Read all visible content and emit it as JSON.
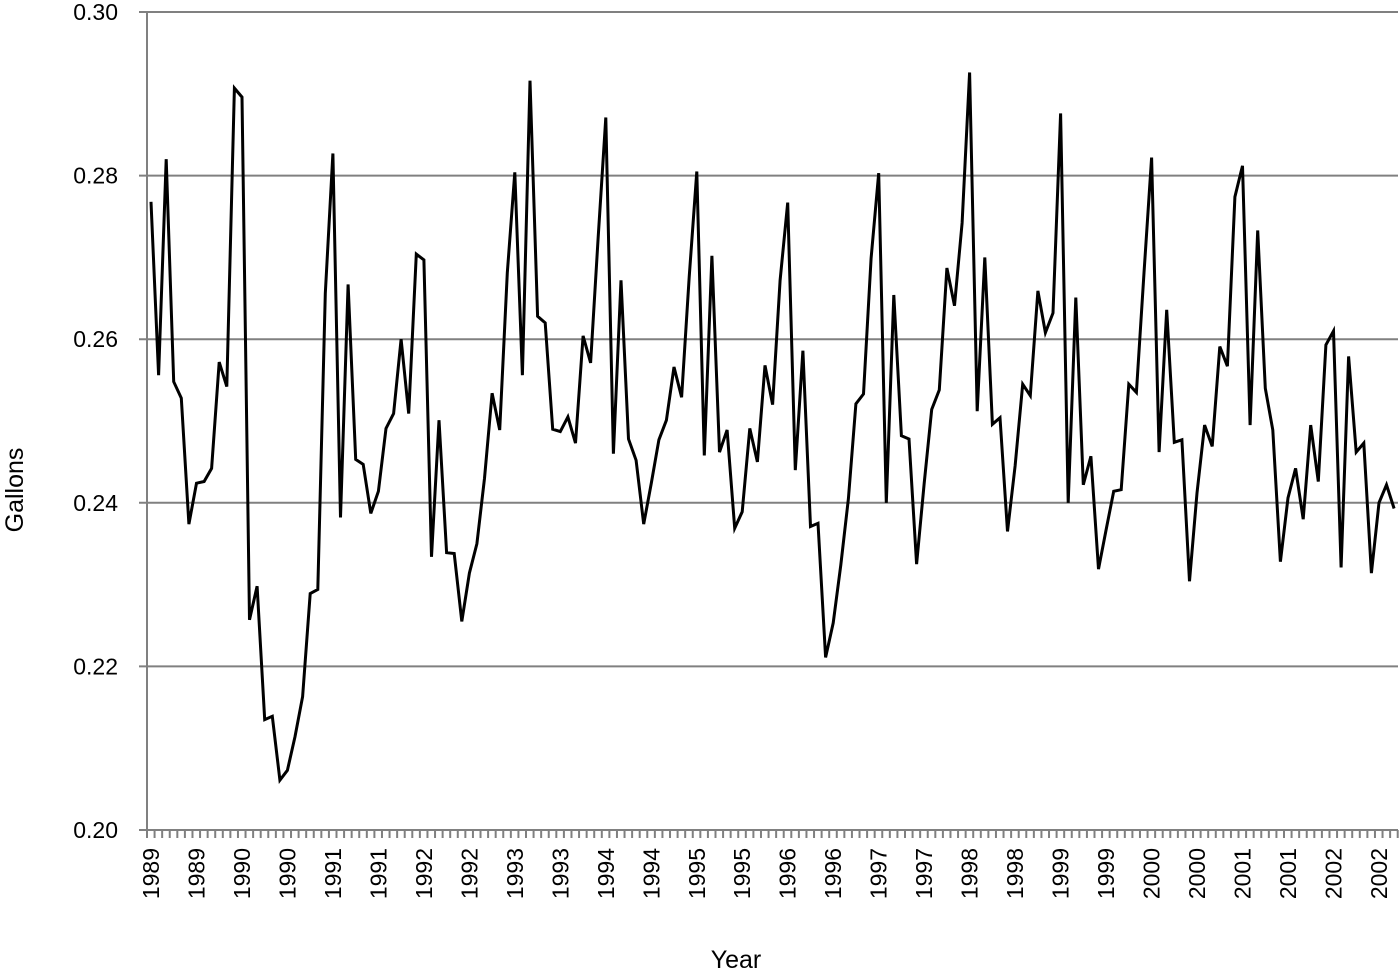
{
  "chart_data": {
    "type": "line",
    "title": "",
    "xlabel": "Year",
    "ylabel": "Gallons",
    "ylim": [
      0.2,
      0.3
    ],
    "yticks": [
      "0.20",
      "0.22",
      "0.24",
      "0.26",
      "0.28",
      "0.30"
    ],
    "grid": true,
    "legend": null,
    "x_frequency": "monthly",
    "x_start": "1989-01",
    "x_tick_labels": [
      "1989",
      "1989",
      "1990",
      "1990",
      "1991",
      "1991",
      "1992",
      "1992",
      "1993",
      "1993",
      "1994",
      "1994",
      "1995",
      "1995",
      "1996",
      "1996",
      "1997",
      "1997",
      "1998",
      "1998",
      "1999",
      "1999",
      "2000",
      "2000",
      "2001",
      "2001",
      "2002",
      "2002"
    ],
    "x_tick_label_interval_months": 6,
    "series": [
      {
        "name": "Gallons",
        "color": "#000000",
        "values": [
          0.2768,
          0.2556,
          0.282,
          0.2548,
          0.2528,
          0.2374,
          0.2424,
          0.2426,
          0.2442,
          0.2572,
          0.2542,
          0.2907,
          0.2896,
          0.2257,
          0.2298,
          0.2135,
          0.2139,
          0.2061,
          0.2073,
          0.2114,
          0.2163,
          0.2289,
          0.2294,
          0.2656,
          0.2827,
          0.2382,
          0.2667,
          0.2453,
          0.2447,
          0.2387,
          0.2414,
          0.2491,
          0.2509,
          0.26,
          0.2509,
          0.2704,
          0.2697,
          0.2334,
          0.2501,
          0.2339,
          0.2338,
          0.2255,
          0.2314,
          0.235,
          0.243,
          0.2534,
          0.2489,
          0.2681,
          0.2804,
          0.2556,
          0.2916,
          0.2628,
          0.262,
          0.249,
          0.2487,
          0.2505,
          0.2473,
          0.2604,
          0.2571,
          0.2725,
          0.2871,
          0.246,
          0.2672,
          0.2478,
          0.2452,
          0.2374,
          0.2424,
          0.2477,
          0.2501,
          0.2566,
          0.2529,
          0.2676,
          0.2805,
          0.2458,
          0.2702,
          0.2462,
          0.2489,
          0.2369,
          0.2389,
          0.2491,
          0.245,
          0.2568,
          0.252,
          0.2672,
          0.2767,
          0.244,
          0.2586,
          0.2371,
          0.2375,
          0.2211,
          0.2253,
          0.2324,
          0.2405,
          0.2521,
          0.2533,
          0.2699,
          0.2803,
          0.24,
          0.2654,
          0.2482,
          0.2478,
          0.2325,
          0.2424,
          0.2514,
          0.2538,
          0.2687,
          0.2641,
          0.2742,
          0.2926,
          0.2512,
          0.27,
          0.2496,
          0.2504,
          0.2365,
          0.2445,
          0.2545,
          0.2531,
          0.2659,
          0.2608,
          0.2632,
          0.2876,
          0.24,
          0.2651,
          0.2422,
          0.2457,
          0.2319,
          0.2367,
          0.2414,
          0.2416,
          0.2545,
          0.2535,
          0.2681,
          0.2822,
          0.2462,
          0.2636,
          0.2474,
          0.2477,
          0.2304,
          0.2412,
          0.2495,
          0.2469,
          0.2591,
          0.2567,
          0.2774,
          0.2812,
          0.2495,
          0.2733,
          0.254,
          0.2489,
          0.2328,
          0.2406,
          0.2442,
          0.238,
          0.2495,
          0.2426,
          0.2593,
          0.261,
          0.2321,
          0.2579,
          0.2462,
          0.2473,
          0.2314,
          0.24,
          0.2422,
          0.2393
        ]
      }
    ]
  },
  "colors": {
    "grid": "#808080",
    "axis": "#808080",
    "line": "#000000"
  }
}
